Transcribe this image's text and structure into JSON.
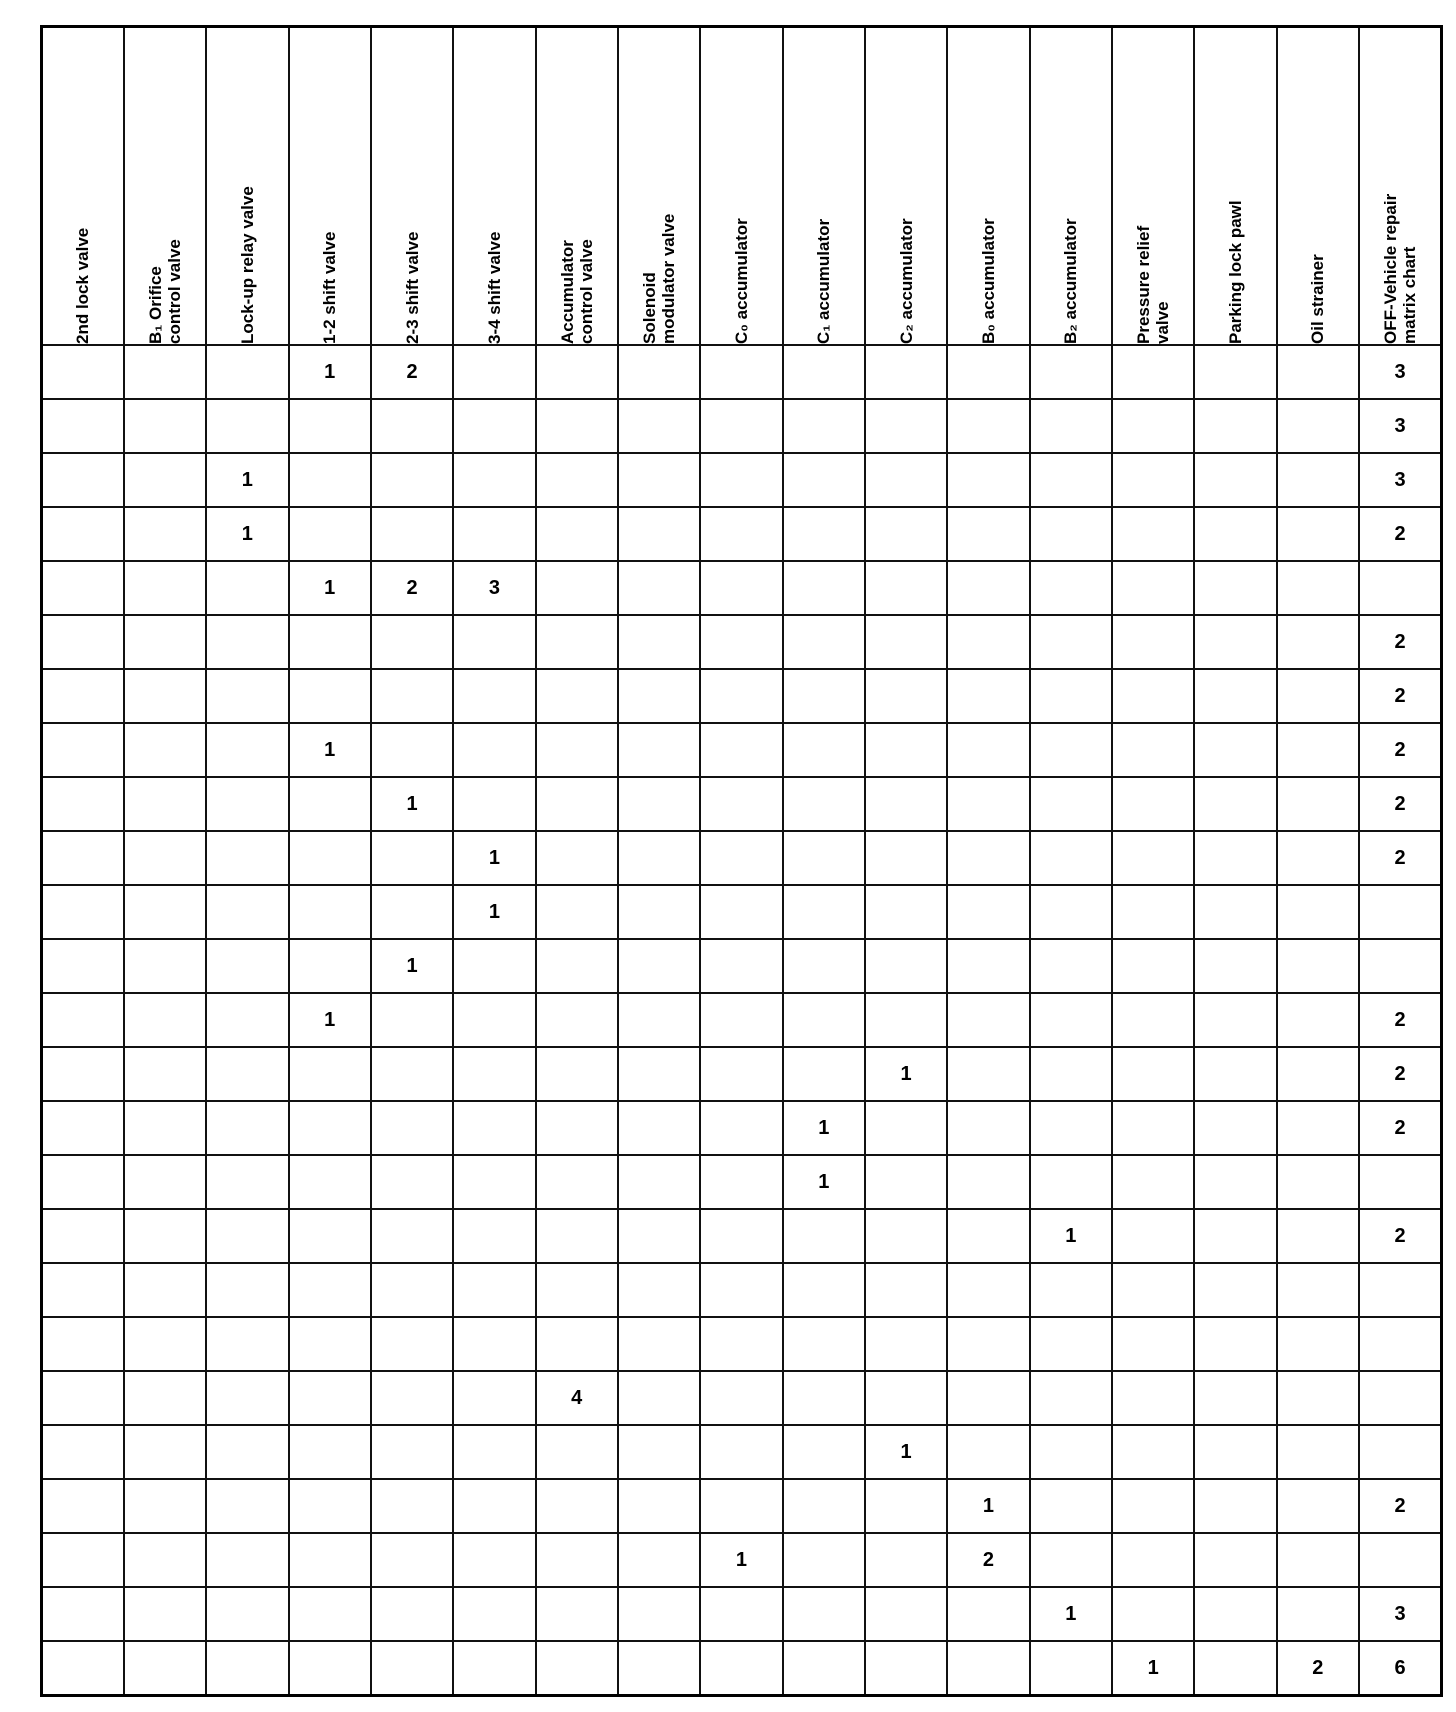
{
  "columns": [
    "2nd lock valve",
    "B₁ Orifice\ncontrol valve",
    "Lock-up relay valve",
    "1-2 shift valve",
    "2-3 shift valve",
    "3-4 shift valve",
    "Accumulator\ncontrol valve",
    "Solenoid\nmodulator valve",
    "C₀ accumulator",
    "C₁ accumulator",
    "C₂ accumulator",
    "B₀ accumulator",
    "B₂ accumulator",
    "Pressure relief\nvalve",
    "Parking lock pawl",
    "Oil strainer",
    "OFF-Vehicle repair\nmatrix chart"
  ],
  "rows": [
    [
      "",
      "",
      "",
      "1",
      "2",
      "",
      "",
      "",
      "",
      "",
      "",
      "",
      "",
      "",
      "",
      "",
      "3"
    ],
    [
      "",
      "",
      "",
      "",
      "",
      "",
      "",
      "",
      "",
      "",
      "",
      "",
      "",
      "",
      "",
      "",
      "3"
    ],
    [
      "",
      "",
      "1",
      "",
      "",
      "",
      "",
      "",
      "",
      "",
      "",
      "",
      "",
      "",
      "",
      "",
      "3"
    ],
    [
      "",
      "",
      "1",
      "",
      "",
      "",
      "",
      "",
      "",
      "",
      "",
      "",
      "",
      "",
      "",
      "",
      "2"
    ],
    [
      "",
      "",
      "",
      "1",
      "2",
      "3",
      "",
      "",
      "",
      "",
      "",
      "",
      "",
      "",
      "",
      "",
      ""
    ],
    [
      "",
      "",
      "",
      "",
      "",
      "",
      "",
      "",
      "",
      "",
      "",
      "",
      "",
      "",
      "",
      "",
      "2"
    ],
    [
      "",
      "",
      "",
      "",
      "",
      "",
      "",
      "",
      "",
      "",
      "",
      "",
      "",
      "",
      "",
      "",
      "2"
    ],
    [
      "",
      "",
      "",
      "1",
      "",
      "",
      "",
      "",
      "",
      "",
      "",
      "",
      "",
      "",
      "",
      "",
      "2"
    ],
    [
      "",
      "",
      "",
      "",
      "1",
      "",
      "",
      "",
      "",
      "",
      "",
      "",
      "",
      "",
      "",
      "",
      "2"
    ],
    [
      "",
      "",
      "",
      "",
      "",
      "1",
      "",
      "",
      "",
      "",
      "",
      "",
      "",
      "",
      "",
      "",
      "2"
    ],
    [
      "",
      "",
      "",
      "",
      "",
      "1",
      "",
      "",
      "",
      "",
      "",
      "",
      "",
      "",
      "",
      "",
      ""
    ],
    [
      "",
      "",
      "",
      "",
      "1",
      "",
      "",
      "",
      "",
      "",
      "",
      "",
      "",
      "",
      "",
      "",
      ""
    ],
    [
      "",
      "",
      "",
      "1",
      "",
      "",
      "",
      "",
      "",
      "",
      "",
      "",
      "",
      "",
      "",
      "",
      "2"
    ],
    [
      "",
      "",
      "",
      "",
      "",
      "",
      "",
      "",
      "",
      "",
      "1",
      "",
      "",
      "",
      "",
      "",
      "2"
    ],
    [
      "",
      "",
      "",
      "",
      "",
      "",
      "",
      "",
      "",
      "1",
      "",
      "",
      "",
      "",
      "",
      "",
      "2"
    ],
    [
      "",
      "",
      "",
      "",
      "",
      "",
      "",
      "",
      "",
      "1",
      "",
      "",
      "",
      "",
      "",
      "",
      ""
    ],
    [
      "",
      "",
      "",
      "",
      "",
      "",
      "",
      "",
      "",
      "",
      "",
      "",
      "1",
      "",
      "",
      "",
      "2"
    ],
    [
      "",
      "",
      "",
      "",
      "",
      "",
      "",
      "",
      "",
      "",
      "",
      "",
      "",
      "",
      "",
      "",
      ""
    ],
    [
      "",
      "",
      "",
      "",
      "",
      "",
      "",
      "",
      "",
      "",
      "",
      "",
      "",
      "",
      "",
      "",
      ""
    ],
    [
      "",
      "",
      "",
      "",
      "",
      "",
      "4",
      "",
      "",
      "",
      "",
      "",
      "",
      "",
      "",
      "",
      ""
    ],
    [
      "",
      "",
      "",
      "",
      "",
      "",
      "",
      "",
      "",
      "",
      "1",
      "",
      "",
      "",
      "",
      "",
      ""
    ],
    [
      "",
      "",
      "",
      "",
      "",
      "",
      "",
      "",
      "",
      "",
      "",
      "1",
      "",
      "",
      "",
      "",
      "2"
    ],
    [
      "",
      "",
      "",
      "",
      "",
      "",
      "",
      "",
      "1",
      "",
      "",
      "2",
      "",
      "",
      "",
      "",
      ""
    ],
    [
      "",
      "",
      "",
      "",
      "",
      "",
      "",
      "",
      "",
      "",
      "",
      "",
      "1",
      "",
      "",
      "",
      "3"
    ],
    [
      "",
      "",
      "",
      "",
      "",
      "",
      "",
      "",
      "",
      "",
      "",
      "",
      "",
      "1",
      "",
      "2",
      "6"
    ]
  ]
}
